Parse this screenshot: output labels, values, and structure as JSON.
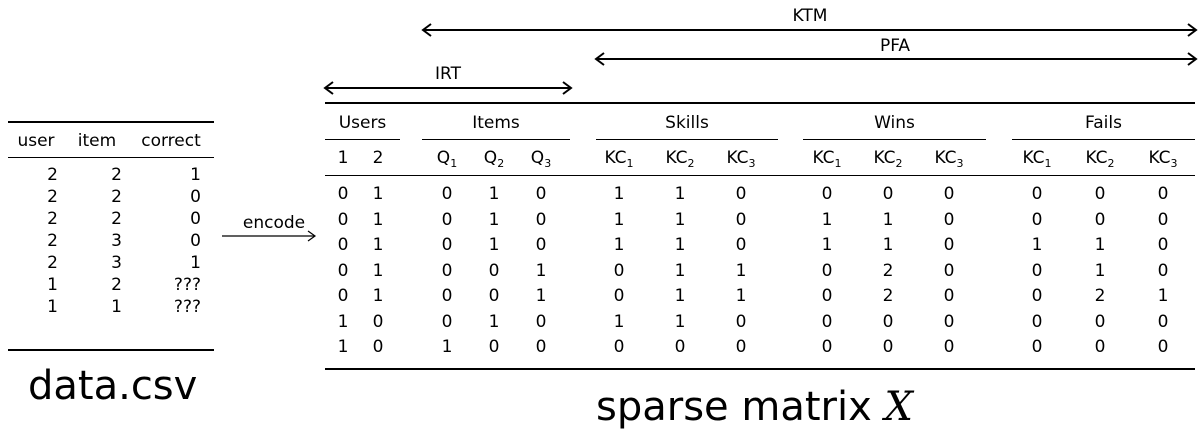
{
  "csv": {
    "headers": [
      "user",
      "item",
      "correct"
    ],
    "rows": [
      [
        "2",
        "2",
        "1"
      ],
      [
        "2",
        "2",
        "0"
      ],
      [
        "2",
        "2",
        "0"
      ],
      [
        "2",
        "3",
        "0"
      ],
      [
        "2",
        "3",
        "1"
      ],
      [
        "1",
        "2",
        "???"
      ],
      [
        "1",
        "1",
        "???"
      ]
    ],
    "caption": "data.csv"
  },
  "encode_label": "encode",
  "spans": {
    "ktm": "KTM",
    "pfa": "PFA",
    "irt": "IRT"
  },
  "matrix": {
    "groups": [
      "Users",
      "Items",
      "Skills",
      "Wins",
      "Fails"
    ],
    "columns": [
      {
        "base": "1",
        "sub": ""
      },
      {
        "base": "2",
        "sub": ""
      },
      {
        "base": "Q",
        "sub": "1"
      },
      {
        "base": "Q",
        "sub": "2"
      },
      {
        "base": "Q",
        "sub": "3"
      },
      {
        "base": "KC",
        "sub": "1"
      },
      {
        "base": "KC",
        "sub": "2"
      },
      {
        "base": "KC",
        "sub": "3"
      },
      {
        "base": "KC",
        "sub": "1"
      },
      {
        "base": "KC",
        "sub": "2"
      },
      {
        "base": "KC",
        "sub": "3"
      },
      {
        "base": "KC",
        "sub": "1"
      },
      {
        "base": "KC",
        "sub": "2"
      },
      {
        "base": "KC",
        "sub": "3"
      }
    ],
    "rows": [
      [
        "0",
        "1",
        "0",
        "1",
        "0",
        "1",
        "1",
        "0",
        "0",
        "0",
        "0",
        "0",
        "0",
        "0"
      ],
      [
        "0",
        "1",
        "0",
        "1",
        "0",
        "1",
        "1",
        "0",
        "1",
        "1",
        "0",
        "0",
        "0",
        "0"
      ],
      [
        "0",
        "1",
        "0",
        "1",
        "0",
        "1",
        "1",
        "0",
        "1",
        "1",
        "0",
        "1",
        "1",
        "0"
      ],
      [
        "0",
        "1",
        "0",
        "0",
        "1",
        "0",
        "1",
        "1",
        "0",
        "2",
        "0",
        "0",
        "1",
        "0"
      ],
      [
        "0",
        "1",
        "0",
        "0",
        "1",
        "0",
        "1",
        "1",
        "0",
        "2",
        "0",
        "0",
        "2",
        "1"
      ],
      [
        "1",
        "0",
        "0",
        "1",
        "0",
        "1",
        "1",
        "0",
        "0",
        "0",
        "0",
        "0",
        "0",
        "0"
      ],
      [
        "1",
        "0",
        "1",
        "0",
        "0",
        "0",
        "0",
        "0",
        "0",
        "0",
        "0",
        "0",
        "0",
        "0"
      ]
    ],
    "caption_text": "sparse matrix ",
    "caption_symbol": "X"
  }
}
